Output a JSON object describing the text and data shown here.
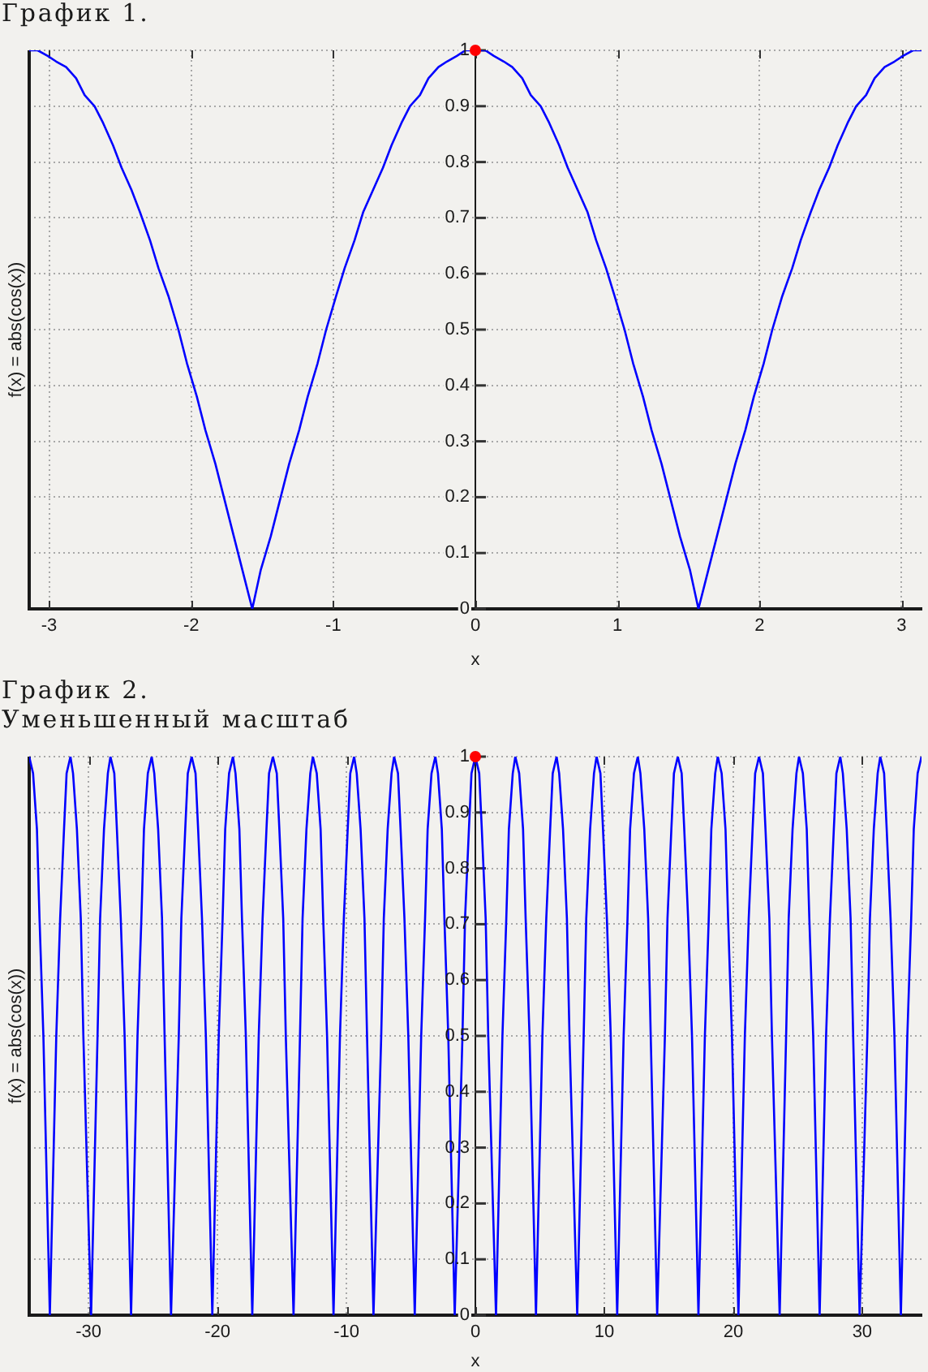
{
  "chart_data": [
    {
      "type": "line",
      "title": "График 1.",
      "xlabel": "x",
      "ylabel": "f(x) = abs(cos(x))",
      "xlim": [
        -3.14,
        3.14
      ],
      "xticks": [
        -3,
        -2,
        -1,
        0,
        1,
        2,
        3
      ],
      "ylim": [
        0,
        1
      ],
      "yticks": [
        0,
        0.1,
        0.2,
        0.3,
        0.4,
        0.5,
        0.6,
        0.7,
        0.8,
        0.9,
        1
      ],
      "grid": true,
      "series": [
        {
          "type": "line",
          "color": "#0000ff",
          "marker": "none",
          "x": [
            -3.14,
            -3.08,
            -3.01,
            -2.95,
            -2.88,
            -2.81,
            -2.75,
            -2.68,
            -2.62,
            -2.55,
            -2.49,
            -2.42,
            -2.36,
            -2.29,
            -2.23,
            -2.16,
            -2.09,
            -2.03,
            -1.96,
            -1.9,
            -1.83,
            -1.77,
            -1.7,
            -1.64,
            -1.57,
            -1.51,
            -1.44,
            -1.37,
            -1.31,
            -1.24,
            -1.18,
            -1.11,
            -1.05,
            -0.98,
            -0.92,
            -0.85,
            -0.79,
            -0.72,
            -0.65,
            -0.59,
            -0.52,
            -0.46,
            -0.39,
            -0.33,
            -0.26,
            -0.2,
            -0.13,
            -0.07,
            0,
            0.07,
            0.13,
            0.2,
            0.26,
            0.33,
            0.39,
            0.46,
            0.52,
            0.59,
            0.65,
            0.72,
            0.79,
            0.85,
            0.92,
            0.98,
            1.05,
            1.11,
            1.18,
            1.24,
            1.31,
            1.37,
            1.44,
            1.51,
            1.57,
            1.64,
            1.7,
            1.77,
            1.83,
            1.9,
            1.96,
            2.03,
            2.09,
            2.16,
            2.23,
            2.29,
            2.36,
            2.42,
            2.49,
            2.55,
            2.62,
            2.68,
            2.75,
            2.81,
            2.88,
            2.95,
            3.01,
            3.08,
            3.14
          ],
          "values": [
            1,
            1,
            0.99,
            0.98,
            0.97,
            0.95,
            0.92,
            0.9,
            0.87,
            0.83,
            0.79,
            0.75,
            0.71,
            0.66,
            0.61,
            0.56,
            0.5,
            0.44,
            0.38,
            0.32,
            0.26,
            0.2,
            0.13,
            0.07,
            0,
            0.07,
            0.13,
            0.2,
            0.26,
            0.32,
            0.38,
            0.44,
            0.5,
            0.56,
            0.61,
            0.66,
            0.71,
            0.75,
            0.79,
            0.83,
            0.87,
            0.9,
            0.92,
            0.95,
            0.97,
            0.98,
            0.99,
            1,
            1,
            1,
            0.99,
            0.98,
            0.97,
            0.95,
            0.92,
            0.9,
            0.87,
            0.83,
            0.79,
            0.75,
            0.71,
            0.66,
            0.61,
            0.56,
            0.5,
            0.44,
            0.38,
            0.32,
            0.26,
            0.2,
            0.13,
            0.07,
            0,
            0.07,
            0.13,
            0.2,
            0.26,
            0.32,
            0.38,
            0.44,
            0.5,
            0.56,
            0.61,
            0.66,
            0.71,
            0.75,
            0.79,
            0.83,
            0.87,
            0.9,
            0.92,
            0.95,
            0.97,
            0.98,
            0.99,
            1,
            1
          ]
        },
        {
          "type": "scatter",
          "color": "#ff0000",
          "marker": "circle",
          "x": [
            0
          ],
          "values": [
            1
          ]
        }
      ]
    },
    {
      "type": "line",
      "title": "График 2.",
      "subtitle": "Уменьшенный масштаб",
      "xlabel": "x",
      "ylabel": "f(x) = abs(cos(x))",
      "xlim": [
        -34.6,
        34.6
      ],
      "xticks": [
        -30,
        -20,
        -10,
        0,
        10,
        20,
        30
      ],
      "ylim": [
        0,
        1
      ],
      "yticks": [
        0,
        0.1,
        0.2,
        0.3,
        0.4,
        0.5,
        0.6,
        0.7,
        0.8,
        0.9,
        1
      ],
      "grid": true,
      "series": [
        {
          "type": "line",
          "color": "#0000ff",
          "marker": "none",
          "x": [
            -34.6,
            -34.3,
            -34,
            -33.8,
            -33.5,
            -33,
            -32.5,
            -32.2,
            -31.9,
            -31.7,
            -31.4,
            -31.2,
            -30.9,
            -30.6,
            -30.4,
            -29.8,
            -29.3,
            -29.1,
            -28.8,
            -28.5,
            -28.3,
            -28,
            -27.8,
            -27.5,
            -27.2,
            -26.7,
            -26.2,
            -25.9,
            -25.7,
            -25.4,
            -25.1,
            -24.9,
            -24.6,
            -24.3,
            -24.1,
            -23.6,
            -23,
            -22.8,
            -22.5,
            -22.3,
            -22,
            -21.7,
            -21.5,
            -21.2,
            -20.9,
            -20.4,
            -19.9,
            -19.6,
            -19.4,
            -19.1,
            -18.8,
            -18.6,
            -18.3,
            -18.1,
            -17.8,
            -17.3,
            -16.8,
            -16.5,
            -16.2,
            -16,
            -15.7,
            -15.4,
            -15.2,
            -14.9,
            -14.7,
            -14.1,
            -13.6,
            -13.4,
            -13.1,
            -12.8,
            -12.6,
            -12.3,
            -12,
            -11.8,
            -11.5,
            -11,
            -10.5,
            -10.2,
            -9.9,
            -9.7,
            -9.4,
            -9.2,
            -8.9,
            -8.6,
            -8.4,
            -7.9,
            -7.3,
            -7.1,
            -6.8,
            -6.5,
            -6.3,
            -6,
            -5.8,
            -5.5,
            -5.2,
            -4.7,
            -4.2,
            -3.9,
            -3.7,
            -3.4,
            -3.1,
            -2.9,
            -2.6,
            -2.4,
            -2.1,
            -1.6,
            -1,
            -0.8,
            -0.5,
            -0.3,
            0,
            0.3,
            0.5,
            0.8,
            1,
            1.6,
            2.1,
            2.4,
            2.6,
            2.9,
            3.1,
            3.4,
            3.7,
            3.9,
            4.2,
            4.7,
            5.2,
            5.5,
            5.8,
            6,
            6.3,
            6.5,
            6.8,
            7.1,
            7.3,
            7.9,
            8.4,
            8.6,
            8.9,
            9.2,
            9.4,
            9.7,
            9.9,
            10.2,
            10.5,
            11,
            11.5,
            11.8,
            12,
            12.3,
            12.6,
            12.8,
            13.1,
            13.4,
            13.6,
            14.1,
            14.7,
            14.9,
            15.2,
            15.4,
            15.7,
            16,
            16.2,
            16.5,
            16.8,
            17.3,
            17.8,
            18.1,
            18.3,
            18.6,
            18.8,
            19.1,
            19.4,
            19.6,
            19.9,
            20.4,
            20.9,
            21.2,
            21.5,
            21.7,
            22,
            22.3,
            22.5,
            22.8,
            23,
            23.6,
            24.1,
            24.3,
            24.6,
            24.9,
            25.1,
            25.4,
            25.7,
            25.9,
            26.2,
            26.7,
            27.2,
            27.5,
            27.8,
            28,
            28.3,
            28.5,
            28.8,
            29.1,
            29.3,
            29.8,
            30.4,
            30.6,
            30.9,
            31.2,
            31.4,
            31.7,
            31.9,
            32.2,
            32.5,
            33,
            33.5,
            33.8,
            34,
            34.3,
            34.6
          ],
          "values": [
            1,
            0.97,
            0.87,
            0.71,
            0.5,
            0,
            0.5,
            0.71,
            0.87,
            0.97,
            1,
            0.97,
            0.87,
            0.71,
            0.5,
            0,
            0.5,
            0.71,
            0.87,
            0.97,
            1,
            0.97,
            0.87,
            0.71,
            0.5,
            0,
            0.5,
            0.71,
            0.87,
            0.97,
            1,
            0.97,
            0.87,
            0.71,
            0.5,
            0,
            0.5,
            0.71,
            0.87,
            0.97,
            1,
            0.97,
            0.87,
            0.71,
            0.5,
            0,
            0.5,
            0.71,
            0.87,
            0.97,
            1,
            0.97,
            0.87,
            0.71,
            0.5,
            0,
            0.5,
            0.71,
            0.87,
            0.97,
            1,
            0.97,
            0.87,
            0.71,
            0.5,
            0,
            0.5,
            0.71,
            0.87,
            0.97,
            1,
            0.97,
            0.87,
            0.71,
            0.5,
            0,
            0.5,
            0.71,
            0.87,
            0.97,
            1,
            0.97,
            0.87,
            0.71,
            0.5,
            0,
            0.5,
            0.71,
            0.87,
            0.97,
            1,
            0.97,
            0.87,
            0.71,
            0.5,
            0,
            0.5,
            0.71,
            0.87,
            0.97,
            1,
            0.97,
            0.87,
            0.71,
            0.5,
            0,
            0.5,
            0.71,
            0.87,
            0.97,
            1,
            0.97,
            0.87,
            0.71,
            0.5,
            0,
            0.5,
            0.71,
            0.87,
            0.97,
            1,
            0.97,
            0.87,
            0.71,
            0.5,
            0,
            0.5,
            0.71,
            0.87,
            0.97,
            1,
            0.97,
            0.87,
            0.71,
            0.5,
            0,
            0.5,
            0.71,
            0.87,
            0.97,
            1,
            0.97,
            0.87,
            0.71,
            0.5,
            0,
            0.5,
            0.71,
            0.87,
            0.97,
            1,
            0.97,
            0.87,
            0.71,
            0.5,
            0,
            0.5,
            0.71,
            0.87,
            0.97,
            1,
            0.97,
            0.87,
            0.71,
            0.5,
            0,
            0.5,
            0.71,
            0.87,
            0.97,
            1,
            0.97,
            0.87,
            0.71,
            0.5,
            0,
            0.5,
            0.71,
            0.87,
            0.97,
            1,
            0.97,
            0.87,
            0.71,
            0.5,
            0,
            0.5,
            0.71,
            0.87,
            0.97,
            1,
            0.97,
            0.87,
            0.71,
            0.5,
            0,
            0.5,
            0.71,
            0.87,
            0.97,
            1,
            0.97,
            0.87,
            0.71,
            0.5,
            0,
            0.5,
            0.71,
            0.87,
            0.97,
            1,
            0.97,
            0.87,
            0.71,
            0.5,
            0,
            0.5,
            0.71,
            0.87,
            0.97,
            1
          ]
        },
        {
          "type": "scatter",
          "color": "#ff0000",
          "marker": "circle",
          "x": [
            0
          ],
          "values": [
            1
          ]
        }
      ]
    }
  ]
}
